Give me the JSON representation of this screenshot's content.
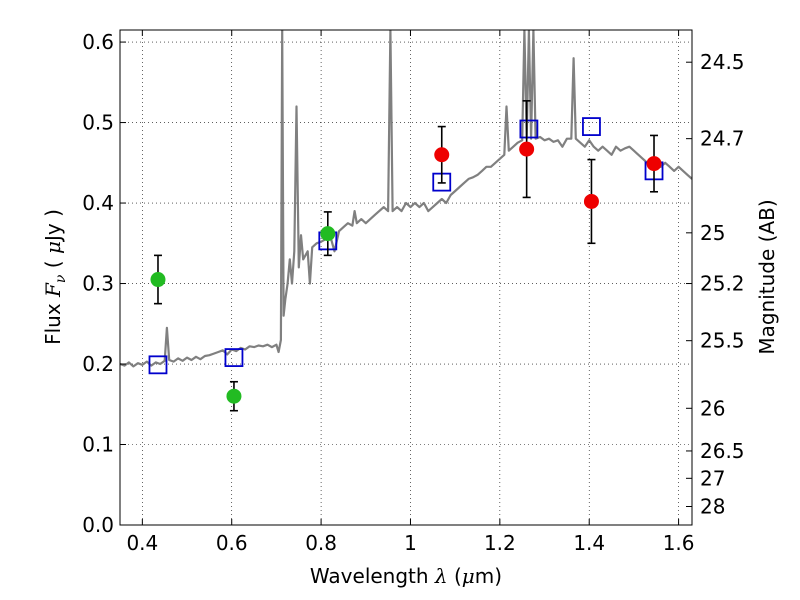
{
  "chart_data": {
    "type": "scatter",
    "xlabel": "Wavelength  λ (μm)",
    "ylabel": "Flux  F_ν  ( μJy )",
    "ylabel_right": "Magnitude (AB)",
    "xlim": [
      0.35,
      1.63
    ],
    "ylim": [
      0.0,
      0.615
    ],
    "grid": true,
    "x_ticks": [
      {
        "value": 0.4,
        "label": "0.4"
      },
      {
        "value": 0.6,
        "label": "0.6"
      },
      {
        "value": 0.8,
        "label": "0.8"
      },
      {
        "value": 1.0,
        "label": "1"
      },
      {
        "value": 1.2,
        "label": "1.2"
      },
      {
        "value": 1.4,
        "label": "1.4"
      },
      {
        "value": 1.6,
        "label": "1.6"
      }
    ],
    "y_ticks": [
      {
        "value": 0.0,
        "label": "0.0"
      },
      {
        "value": 0.1,
        "label": "0.1"
      },
      {
        "value": 0.2,
        "label": "0.2"
      },
      {
        "value": 0.3,
        "label": "0.3"
      },
      {
        "value": 0.4,
        "label": "0.4"
      },
      {
        "value": 0.5,
        "label": "0.5"
      },
      {
        "value": 0.6,
        "label": "0.6"
      }
    ],
    "right_ticks": [
      {
        "flux": 0.575,
        "label": "24.5"
      },
      {
        "flux": 0.48,
        "label": "24.7"
      },
      {
        "flux": 0.363,
        "label": "25"
      },
      {
        "flux": 0.3,
        "label": "25.2"
      },
      {
        "flux": 0.229,
        "label": "25.5"
      },
      {
        "flux": 0.145,
        "label": "26"
      },
      {
        "flux": 0.092,
        "label": "26.5"
      },
      {
        "flux": 0.058,
        "label": "27"
      },
      {
        "flux": 0.023,
        "label": "28"
      }
    ],
    "series": [
      {
        "kind": "spectrum",
        "color": "#808080",
        "points": [
          [
            0.35,
            0.2
          ],
          [
            0.36,
            0.198
          ],
          [
            0.37,
            0.202
          ],
          [
            0.38,
            0.197
          ],
          [
            0.39,
            0.201
          ],
          [
            0.4,
            0.199
          ],
          [
            0.41,
            0.203
          ],
          [
            0.42,
            0.198
          ],
          [
            0.43,
            0.202
          ],
          [
            0.44,
            0.2
          ],
          [
            0.45,
            0.204
          ],
          [
            0.455,
            0.245
          ],
          [
            0.46,
            0.205
          ],
          [
            0.47,
            0.203
          ],
          [
            0.48,
            0.207
          ],
          [
            0.49,
            0.204
          ],
          [
            0.5,
            0.208
          ],
          [
            0.51,
            0.205
          ],
          [
            0.52,
            0.209
          ],
          [
            0.53,
            0.206
          ],
          [
            0.54,
            0.21
          ],
          [
            0.55,
            0.211
          ],
          [
            0.56,
            0.213
          ],
          [
            0.57,
            0.215
          ],
          [
            0.58,
            0.217
          ],
          [
            0.59,
            0.212
          ],
          [
            0.6,
            0.218
          ],
          [
            0.61,
            0.216
          ],
          [
            0.62,
            0.22
          ],
          [
            0.63,
            0.218
          ],
          [
            0.64,
            0.222
          ],
          [
            0.65,
            0.221
          ],
          [
            0.66,
            0.223
          ],
          [
            0.67,
            0.222
          ],
          [
            0.68,
            0.224
          ],
          [
            0.69,
            0.221
          ],
          [
            0.7,
            0.224
          ],
          [
            0.705,
            0.215
          ],
          [
            0.71,
            0.23
          ],
          [
            0.713,
            0.615
          ],
          [
            0.716,
            0.26
          ],
          [
            0.72,
            0.28
          ],
          [
            0.725,
            0.3
          ],
          [
            0.73,
            0.33
          ],
          [
            0.735,
            0.3
          ],
          [
            0.74,
            0.34
          ],
          [
            0.745,
            0.52
          ],
          [
            0.75,
            0.32
          ],
          [
            0.755,
            0.36
          ],
          [
            0.76,
            0.33
          ],
          [
            0.77,
            0.34
          ],
          [
            0.775,
            0.3
          ],
          [
            0.78,
            0.345
          ],
          [
            0.79,
            0.35
          ],
          [
            0.8,
            0.352
          ],
          [
            0.81,
            0.355
          ],
          [
            0.82,
            0.36
          ],
          [
            0.83,
            0.34
          ],
          [
            0.84,
            0.365
          ],
          [
            0.85,
            0.37
          ],
          [
            0.86,
            0.375
          ],
          [
            0.87,
            0.372
          ],
          [
            0.875,
            0.39
          ],
          [
            0.88,
            0.375
          ],
          [
            0.89,
            0.38
          ],
          [
            0.9,
            0.375
          ],
          [
            0.91,
            0.38
          ],
          [
            0.92,
            0.385
          ],
          [
            0.93,
            0.39
          ],
          [
            0.94,
            0.395
          ],
          [
            0.95,
            0.39
          ],
          [
            0.955,
            0.615
          ],
          [
            0.96,
            0.39
          ],
          [
            0.97,
            0.395
          ],
          [
            0.98,
            0.39
          ],
          [
            0.99,
            0.4
          ],
          [
            1.0,
            0.395
          ],
          [
            1.01,
            0.4
          ],
          [
            1.02,
            0.395
          ],
          [
            1.03,
            0.4
          ],
          [
            1.04,
            0.39
          ],
          [
            1.05,
            0.395
          ],
          [
            1.06,
            0.4
          ],
          [
            1.07,
            0.405
          ],
          [
            1.08,
            0.4
          ],
          [
            1.09,
            0.41
          ],
          [
            1.1,
            0.415
          ],
          [
            1.11,
            0.42
          ],
          [
            1.12,
            0.425
          ],
          [
            1.13,
            0.43
          ],
          [
            1.14,
            0.432
          ],
          [
            1.15,
            0.435
          ],
          [
            1.16,
            0.44
          ],
          [
            1.17,
            0.445
          ],
          [
            1.18,
            0.445
          ],
          [
            1.19,
            0.45
          ],
          [
            1.2,
            0.455
          ],
          [
            1.21,
            0.46
          ],
          [
            1.215,
            0.52
          ],
          [
            1.22,
            0.465
          ],
          [
            1.23,
            0.47
          ],
          [
            1.24,
            0.475
          ],
          [
            1.25,
            0.478
          ],
          [
            1.255,
            0.615
          ],
          [
            1.26,
            0.48
          ],
          [
            1.265,
            0.615
          ],
          [
            1.27,
            0.48
          ],
          [
            1.275,
            0.615
          ],
          [
            1.28,
            0.48
          ],
          [
            1.29,
            0.482
          ],
          [
            1.3,
            0.478
          ],
          [
            1.31,
            0.48
          ],
          [
            1.32,
            0.476
          ],
          [
            1.33,
            0.478
          ],
          [
            1.34,
            0.47
          ],
          [
            1.35,
            0.48
          ],
          [
            1.36,
            0.48
          ],
          [
            1.365,
            0.58
          ],
          [
            1.37,
            0.48
          ],
          [
            1.38,
            0.475
          ],
          [
            1.39,
            0.47
          ],
          [
            1.4,
            0.478
          ],
          [
            1.41,
            0.47
          ],
          [
            1.42,
            0.465
          ],
          [
            1.43,
            0.47
          ],
          [
            1.44,
            0.465
          ],
          [
            1.45,
            0.46
          ],
          [
            1.46,
            0.47
          ],
          [
            1.47,
            0.465
          ],
          [
            1.48,
            0.468
          ],
          [
            1.49,
            0.47
          ],
          [
            1.5,
            0.465
          ],
          [
            1.51,
            0.46
          ],
          [
            1.52,
            0.455
          ],
          [
            1.53,
            0.45
          ],
          [
            1.54,
            0.445
          ],
          [
            1.55,
            0.45
          ],
          [
            1.56,
            0.445
          ],
          [
            1.57,
            0.45
          ],
          [
            1.58,
            0.445
          ],
          [
            1.59,
            0.44
          ],
          [
            1.6,
            0.445
          ],
          [
            1.61,
            0.44
          ],
          [
            1.62,
            0.435
          ],
          [
            1.63,
            0.43
          ]
        ]
      },
      {
        "kind": "open-squares",
        "color": "#0000cc",
        "points": [
          [
            0.435,
            0.199
          ],
          [
            0.605,
            0.208
          ],
          [
            0.815,
            0.353
          ],
          [
            1.07,
            0.426
          ],
          [
            1.265,
            0.492
          ],
          [
            1.405,
            0.495
          ],
          [
            1.545,
            0.44
          ]
        ]
      },
      {
        "kind": "filled-circles",
        "color": "#22bb22",
        "points": [
          {
            "x": 0.435,
            "y": 0.305,
            "err_lo": 0.03,
            "err_hi": 0.03
          },
          {
            "x": 0.605,
            "y": 0.16,
            "err_lo": 0.018,
            "err_hi": 0.018
          },
          {
            "x": 0.815,
            "y": 0.362,
            "err_lo": 0.027,
            "err_hi": 0.027
          }
        ]
      },
      {
        "kind": "filled-circles",
        "color": "#ee0000",
        "points": [
          {
            "x": 1.07,
            "y": 0.46,
            "err_lo": 0.035,
            "err_hi": 0.035
          },
          {
            "x": 1.26,
            "y": 0.467,
            "err_lo": 0.06,
            "err_hi": 0.06
          },
          {
            "x": 1.405,
            "y": 0.402,
            "err_lo": 0.052,
            "err_hi": 0.052
          },
          {
            "x": 1.545,
            "y": 0.449,
            "err_lo": 0.035,
            "err_hi": 0.035
          }
        ]
      }
    ]
  }
}
